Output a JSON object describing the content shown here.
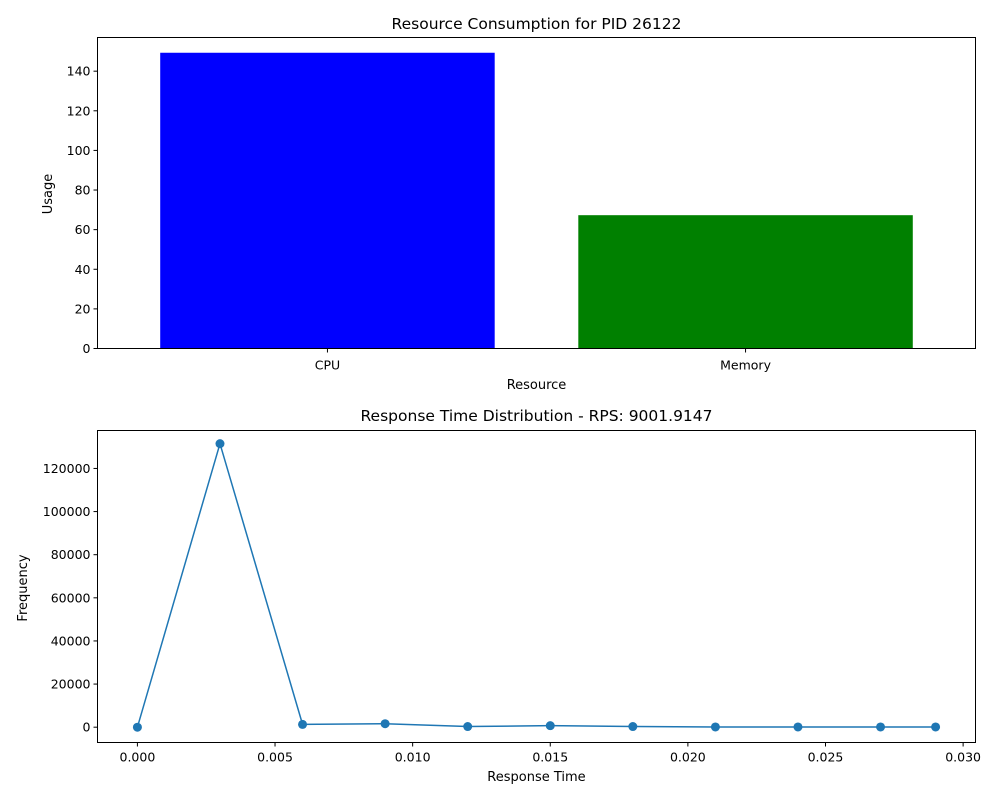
{
  "chart_data": [
    {
      "type": "bar",
      "title": "Resource Consumption for PID 26122",
      "xlabel": "Resource",
      "ylabel": "Usage",
      "categories": [
        "CPU",
        "Memory"
      ],
      "values": [
        149.3,
        67.3
      ],
      "colors": [
        "#0000ff",
        "#008000"
      ],
      "ylim": [
        0,
        157
      ],
      "yticks": [
        0,
        20,
        40,
        60,
        80,
        100,
        120,
        140
      ],
      "grid": false
    },
    {
      "type": "line",
      "title": "Response Time Distribution - RPS: 9001.9147",
      "xlabel": "Response Time",
      "ylabel": "Frequency",
      "x": [
        0.0,
        0.003,
        0.006,
        0.009,
        0.012,
        0.015,
        0.018,
        0.021,
        0.024,
        0.027,
        0.029
      ],
      "y": [
        0,
        131500,
        1300,
        1600,
        300,
        700,
        300,
        100,
        100,
        100,
        100
      ],
      "xlim": [
        -0.00145,
        0.03045
      ],
      "ylim": [
        -7100,
        137600
      ],
      "xticks": [
        0.0,
        0.005,
        0.01,
        0.015,
        0.02,
        0.025,
        0.03
      ],
      "xtick_labels": [
        "0.000",
        "0.005",
        "0.010",
        "0.015",
        "0.020",
        "0.025",
        "0.030"
      ],
      "yticks": [
        0,
        20000,
        40000,
        60000,
        80000,
        100000,
        120000
      ],
      "color": "#1f77b4",
      "markers": true,
      "grid": false
    }
  ]
}
